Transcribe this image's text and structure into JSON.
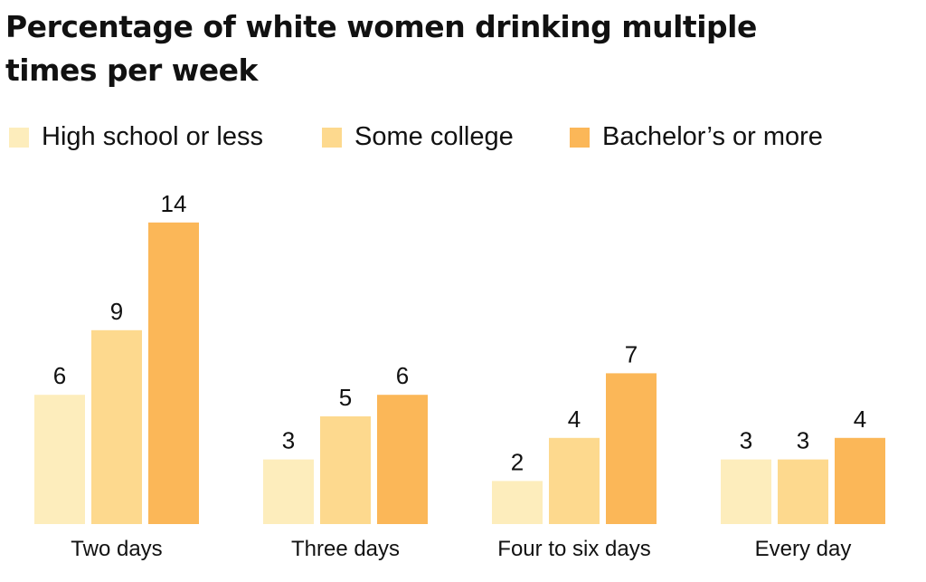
{
  "chart_data": {
    "type": "bar",
    "title": "Percentage of white women drinking multiple times per week",
    "xlabel": "",
    "ylabel": "",
    "ylim": [
      0,
      14
    ],
    "categories": [
      "Two days",
      "Three days",
      "Four to six days",
      "Every day"
    ],
    "series": [
      {
        "name": "High school or less",
        "values": [
          6,
          3,
          2,
          3
        ],
        "color": "#fdedbc"
      },
      {
        "name": "Some college",
        "values": [
          9,
          5,
          4,
          3
        ],
        "color": "#fdd98e"
      },
      {
        "name": "Bachelor’s or more",
        "values": [
          14,
          6,
          7,
          4
        ],
        "color": "#fbb758"
      }
    ],
    "legend_position": "top-left",
    "grid": false
  }
}
